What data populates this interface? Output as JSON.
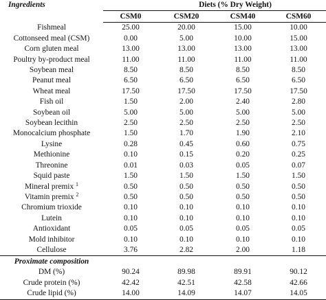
{
  "table": {
    "header": {
      "ingredients_label": "Ingredients",
      "span_label": "Diets (% Dry Weight)",
      "columns": [
        "CSM0",
        "CSM20",
        "CSM40",
        "CSM60"
      ]
    },
    "rows": [
      {
        "name": "Fishmeal",
        "sup": "",
        "values": [
          "25.00",
          "20.00",
          "15.00",
          "10.00"
        ]
      },
      {
        "name": "Cottonseed meal (CSM)",
        "sup": "",
        "values": [
          "0.00",
          "5.00",
          "10.00",
          "15.00"
        ]
      },
      {
        "name": "Corn gluten meal",
        "sup": "",
        "values": [
          "13.00",
          "13.00",
          "13.00",
          "13.00"
        ]
      },
      {
        "name": "Poultry by-product meal",
        "sup": "",
        "values": [
          "11.00",
          "11.00",
          "11.00",
          "11.00"
        ]
      },
      {
        "name": "Soybean meal",
        "sup": "",
        "values": [
          "8.50",
          "8.50",
          "8.50",
          "8.50"
        ]
      },
      {
        "name": "Peanut meal",
        "sup": "",
        "values": [
          "6.50",
          "6.50",
          "6.50",
          "6.50"
        ]
      },
      {
        "name": "Wheat meal",
        "sup": "",
        "values": [
          "17.50",
          "17.50",
          "17.50",
          "17.50"
        ]
      },
      {
        "name": "Fish oil",
        "sup": "",
        "values": [
          "1.50",
          "2.00",
          "2.40",
          "2.80"
        ]
      },
      {
        "name": "Soybean oil",
        "sup": "",
        "values": [
          "5.00",
          "5.00",
          "5.00",
          "5.00"
        ]
      },
      {
        "name": "Soybean lecithin",
        "sup": "",
        "values": [
          "2.50",
          "2.50",
          "2.50",
          "2.50"
        ]
      },
      {
        "name": "Monocalcium phosphate",
        "sup": "",
        "values": [
          "1.50",
          "1.70",
          "1.90",
          "2.10"
        ]
      },
      {
        "name": "Lysine",
        "sup": "",
        "values": [
          "0.28",
          "0.45",
          "0.60",
          "0.75"
        ]
      },
      {
        "name": "Methionine",
        "sup": "",
        "values": [
          "0.10",
          "0.15",
          "0.20",
          "0.25"
        ]
      },
      {
        "name": "Threonine",
        "sup": "",
        "values": [
          "0.01",
          "0.03",
          "0.05",
          "0.07"
        ]
      },
      {
        "name": "Squid paste",
        "sup": "",
        "values": [
          "1.50",
          "1.50",
          "1.50",
          "1.50"
        ]
      },
      {
        "name": "Mineral premix",
        "sup": "1",
        "values": [
          "0.50",
          "0.50",
          "0.50",
          "0.50"
        ]
      },
      {
        "name": "Vitamin premix",
        "sup": "2",
        "values": [
          "0.50",
          "0.50",
          "0.50",
          "0.50"
        ]
      },
      {
        "name": "Chromium trioxide",
        "sup": "",
        "values": [
          "0.10",
          "0.10",
          "0.10",
          "0.10"
        ]
      },
      {
        "name": "Lutein",
        "sup": "",
        "values": [
          "0.10",
          "0.10",
          "0.10",
          "0.10"
        ]
      },
      {
        "name": "Antioxidant",
        "sup": "",
        "values": [
          "0.05",
          "0.05",
          "0.05",
          "0.05"
        ]
      },
      {
        "name": "Mold inhibitor",
        "sup": "",
        "values": [
          "0.10",
          "0.10",
          "0.10",
          "0.10"
        ]
      },
      {
        "name": "Cellulose",
        "sup": "",
        "values": [
          "3.76",
          "2.82",
          "2.00",
          "1.18"
        ]
      }
    ],
    "proximate": {
      "label": "Proximate composition",
      "rows": [
        {
          "name": "DM (%)",
          "values": [
            "90.24",
            "89.98",
            "89.91",
            "90.12"
          ]
        },
        {
          "name": "Crude protein (%)",
          "values": [
            "42.42",
            "42.51",
            "42.58",
            "42.66"
          ]
        },
        {
          "name": "Crude lipid (%)",
          "values": [
            "14.00",
            "14.09",
            "14.07",
            "14.05"
          ]
        }
      ]
    }
  }
}
